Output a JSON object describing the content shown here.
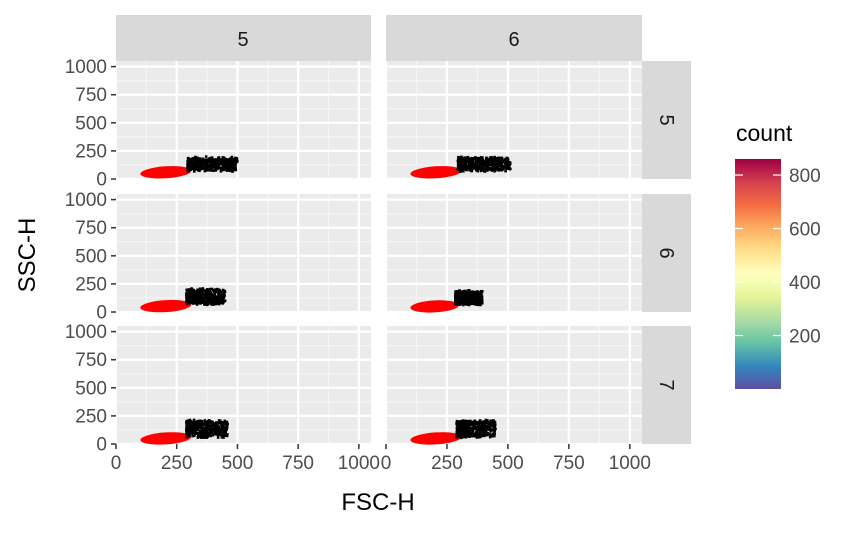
{
  "chart_data": {
    "type": "scatter",
    "facet_type": "grid",
    "xlabel": "FSC-H",
    "ylabel": "SSC-H",
    "xlim": [
      0,
      1050
    ],
    "ylim": [
      0,
      1050
    ],
    "x_ticks": [
      "0",
      "250",
      "500",
      "750",
      "1000"
    ],
    "y_ticks": [
      "0",
      "250",
      "500",
      "750",
      "1000"
    ],
    "col_strips": [
      "5",
      "6"
    ],
    "row_strips": [
      "5",
      "6",
      "7"
    ],
    "grid": true,
    "legend": {
      "title": "count",
      "position": "right",
      "ticks": [
        "200",
        "400",
        "600",
        "800"
      ],
      "tick_values": [
        200,
        400,
        600,
        800
      ],
      "range": [
        0,
        860
      ],
      "palette": [
        "#5E4FA2",
        "#3288BD",
        "#66C2A5",
        "#ABDDA4",
        "#E6F598",
        "#FFFFBF",
        "#FEE08B",
        "#FDAE61",
        "#F46D43",
        "#D53E4F",
        "#9E0142"
      ]
    },
    "panels": [
      {
        "col": "5",
        "row": "5",
        "red": {
          "x": [
            100,
            310
          ],
          "y": [
            45,
            110
          ]
        },
        "black": {
          "x": [
            295,
            500
          ],
          "y": [
            75,
            190
          ]
        }
      },
      {
        "col": "6",
        "row": "5",
        "red": {
          "x": [
            100,
            310
          ],
          "y": [
            45,
            110
          ]
        },
        "black": {
          "x": [
            295,
            510
          ],
          "y": [
            75,
            190
          ]
        }
      },
      {
        "col": "5",
        "row": "6",
        "red": {
          "x": [
            100,
            310
          ],
          "y": [
            40,
            100
          ]
        },
        "black": {
          "x": [
            290,
            450
          ],
          "y": [
            70,
            200
          ]
        }
      },
      {
        "col": "6",
        "row": "6",
        "red": {
          "x": [
            100,
            300
          ],
          "y": [
            40,
            95
          ]
        },
        "black": {
          "x": [
            285,
            395
          ],
          "y": [
            70,
            185
          ]
        }
      },
      {
        "col": "5",
        "row": "7",
        "red": {
          "x": [
            100,
            310
          ],
          "y": [
            35,
            100
          ]
        },
        "black": {
          "x": [
            290,
            460
          ],
          "y": [
            65,
            205
          ]
        }
      },
      {
        "col": "6",
        "row": "7",
        "red": {
          "x": [
            100,
            310
          ],
          "y": [
            35,
            100
          ]
        },
        "black": {
          "x": [
            290,
            450
          ],
          "y": [
            65,
            205
          ]
        }
      }
    ]
  }
}
